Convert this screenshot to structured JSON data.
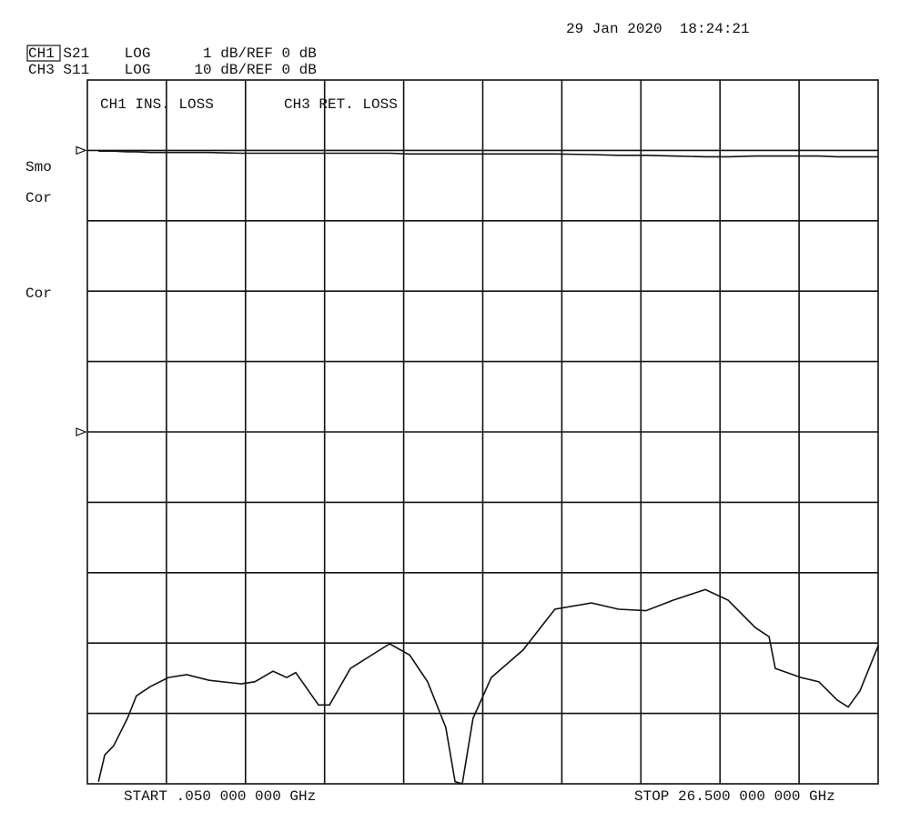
{
  "chart_data": {
    "type": "line",
    "timestamp": "29 Jan 2020  18:24:21",
    "annotations": [
      "CH1 S21    LOG      1 dB/REF 0 dB",
      "CH3 S11    LOG     10 dB/REF 0 dB"
    ],
    "status": [
      "Smo",
      "Cor",
      "Cor"
    ],
    "start_label": "START .050 000 000 GHz",
    "stop_label": "STOP 26.500 000 000 GHz",
    "xlim": [
      0.05,
      26.5
    ],
    "ylim": [
      -9,
      1
    ],
    "y2lim": [
      -50,
      50
    ],
    "x": [
      0.42,
      0.63,
      0.93,
      1.39,
      1.69,
      2.15,
      2.76,
      3.37,
      4.13,
      5.19,
      5.65,
      6.26,
      6.72,
      7.02,
      7.78,
      8.15,
      8.85,
      10.16,
      10.83,
      11.43,
      12.04,
      12.35,
      12.59,
      12.95,
      13.56,
      14.62,
      15.69,
      16.91,
      17.82,
      18.74,
      19.65,
      20.72,
      21.48,
      22.39,
      22.85,
      23.06,
      23.46,
      23.92,
      24.52,
      25.13,
      25.5,
      25.89,
      26.5
    ],
    "series": [
      {
        "name": "CH1 INS. LOSS",
        "color": "#111111",
        "ref": 0,
        "values": [
          -0.01,
          -0.01,
          -0.01,
          -0.02,
          -0.02,
          -0.03,
          -0.03,
          -0.03,
          -0.03,
          -0.04,
          -0.04,
          -0.04,
          -0.04,
          -0.04,
          -0.04,
          -0.04,
          -0.04,
          -0.04,
          -0.05,
          -0.05,
          -0.05,
          -0.05,
          -0.05,
          -0.05,
          -0.05,
          -0.05,
          -0.05,
          -0.06,
          -0.07,
          -0.07,
          -0.08,
          -0.09,
          -0.09,
          -0.08,
          -0.08,
          -0.08,
          -0.08,
          -0.08,
          -0.08,
          -0.09,
          -0.09,
          -0.09,
          -0.09
        ]
      },
      {
        "name": "CH3 RET. LOSS",
        "color": "#111111",
        "axis": "y2",
        "ref": 0,
        "values": [
          -49.7,
          -45.9,
          -44.6,
          -40.7,
          -37.5,
          -36.2,
          -34.9,
          -34.5,
          -35.3,
          -35.8,
          -35.5,
          -34.0,
          -34.9,
          -34.2,
          -38.8,
          -38.8,
          -33.6,
          -30.1,
          -31.7,
          -35.5,
          -42.0,
          -49.7,
          -50.0,
          -40.7,
          -34.9,
          -31.0,
          -25.2,
          -24.3,
          -25.2,
          -25.4,
          -23.9,
          -22.4,
          -23.9,
          -27.8,
          -29.1,
          -33.6,
          -34.2,
          -34.9,
          -35.5,
          -38.1,
          -39.1,
          -36.8,
          -30.4
        ]
      }
    ]
  }
}
